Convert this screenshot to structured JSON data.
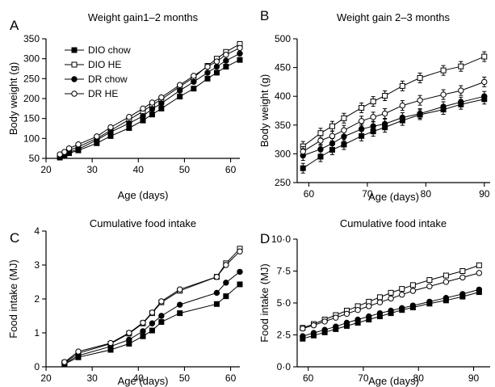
{
  "chart_data": [
    {
      "panel": "A",
      "type": "line",
      "title": "Weight gain1–2 months",
      "xlabel": "Age (days)",
      "ylabel": "Body weight (g)",
      "xlim": [
        20,
        62
      ],
      "ylim": [
        50,
        350
      ],
      "xticks": [
        "20",
        "30",
        "40",
        "50",
        "60"
      ],
      "yticks": [
        "50",
        "100",
        "150",
        "200",
        "250",
        "300",
        "350"
      ],
      "legend": "top-left",
      "series": [
        {
          "name": "DIO chow",
          "marker": "square",
          "fill": "filled",
          "x": [
            23,
            24,
            25,
            27,
            31,
            34,
            38,
            41,
            43,
            45,
            49,
            52,
            55,
            57,
            59,
            62
          ],
          "y": [
            52,
            57,
            63,
            70,
            88,
            106,
            126,
            145,
            160,
            175,
            205,
            225,
            250,
            265,
            280,
            297
          ]
        },
        {
          "name": "DIO HE",
          "marker": "square",
          "fill": "open",
          "x": [
            23,
            24,
            25,
            27,
            31,
            34,
            38,
            41,
            43,
            45,
            49,
            52,
            55,
            57,
            59,
            62
          ],
          "y": [
            57,
            62,
            70,
            79,
            100,
            120,
            147,
            168,
            184,
            198,
            230,
            253,
            282,
            300,
            317,
            337
          ]
        },
        {
          "name": "DR chow",
          "marker": "circle",
          "fill": "filled",
          "x": [
            23,
            24,
            25,
            27,
            31,
            34,
            38,
            41,
            43,
            45,
            49,
            52,
            55,
            57,
            59,
            62
          ],
          "y": [
            53,
            59,
            66,
            73,
            96,
            116,
            138,
            156,
            174,
            188,
            220,
            242,
            265,
            280,
            295,
            313
          ]
        },
        {
          "name": "DR HE",
          "marker": "circle",
          "fill": "open",
          "x": [
            23,
            24,
            25,
            27,
            31,
            34,
            38,
            41,
            43,
            45,
            49,
            52,
            55,
            57,
            59,
            62
          ],
          "y": [
            60,
            66,
            75,
            85,
            105,
            128,
            154,
            175,
            190,
            203,
            234,
            257,
            280,
            293,
            310,
            327
          ]
        }
      ]
    },
    {
      "panel": "B",
      "type": "line",
      "title": "Weight gain 2–3 months",
      "xlabel": "Age (days)",
      "ylabel": "Body weight (g)",
      "xlim": [
        58,
        91
      ],
      "ylim": [
        250,
        500
      ],
      "xticks": [
        "60",
        "70",
        "80",
        "90"
      ],
      "yticks": [
        "250",
        "300",
        "350",
        "400",
        "450",
        "500"
      ],
      "series": [
        {
          "name": "DIO chow",
          "marker": "square",
          "fill": "filled",
          "x": [
            59,
            62,
            64,
            66,
            69,
            71,
            73,
            76,
            79,
            83,
            86,
            90
          ],
          "y": [
            275,
            295,
            307,
            316,
            331,
            339,
            346,
            358,
            368,
            377,
            386,
            395
          ]
        },
        {
          "name": "DIO HE",
          "marker": "square",
          "fill": "open",
          "x": [
            59,
            62,
            64,
            66,
            69,
            71,
            73,
            76,
            79,
            83,
            86,
            90
          ],
          "y": [
            313,
            336,
            348,
            362,
            380,
            391,
            401,
            418,
            432,
            445,
            452,
            469
          ]
        },
        {
          "name": "DR chow",
          "marker": "circle",
          "fill": "filled",
          "x": [
            59,
            62,
            64,
            66,
            69,
            71,
            73,
            76,
            79,
            83,
            86,
            90
          ],
          "y": [
            297,
            308,
            318,
            330,
            343,
            348,
            352,
            363,
            370,
            382,
            390,
            400
          ]
        },
        {
          "name": "DR HE",
          "marker": "circle",
          "fill": "open",
          "x": [
            59,
            62,
            64,
            66,
            69,
            71,
            73,
            76,
            79,
            83,
            86,
            90
          ],
          "y": [
            304,
            323,
            331,
            341,
            357,
            364,
            370,
            384,
            393,
            403,
            410,
            425
          ]
        }
      ]
    },
    {
      "panel": "C",
      "type": "line",
      "title": "Cumulative food intake",
      "xlabel": "Age (days)",
      "ylabel": "Food intake (MJ)",
      "xlim": [
        20,
        62
      ],
      "ylim": [
        0,
        4
      ],
      "xticks": [
        "20",
        "30",
        "40",
        "50",
        "60"
      ],
      "yticks": [
        "0",
        "1",
        "2",
        "3",
        "4"
      ],
      "series": [
        {
          "name": "DIO chow",
          "marker": "square",
          "fill": "filled",
          "x": [
            24,
            27,
            34,
            38,
            41,
            43,
            45,
            49,
            57,
            59,
            62
          ],
          "y": [
            0.08,
            0.28,
            0.5,
            0.68,
            0.9,
            1.07,
            1.32,
            1.58,
            1.85,
            2.08,
            2.43
          ]
        },
        {
          "name": "DIO HE",
          "marker": "square",
          "fill": "open",
          "x": [
            24,
            27,
            34,
            38,
            41,
            43,
            45,
            49,
            57,
            59,
            62
          ],
          "y": [
            0.12,
            0.4,
            0.68,
            0.98,
            1.28,
            1.58,
            1.9,
            2.24,
            2.65,
            3.05,
            3.48
          ]
        },
        {
          "name": "DR chow",
          "marker": "circle",
          "fill": "filled",
          "x": [
            24,
            27,
            34,
            38,
            41,
            43,
            45,
            49,
            57,
            59,
            62
          ],
          "y": [
            0.1,
            0.33,
            0.6,
            0.8,
            1.05,
            1.28,
            1.5,
            1.83,
            2.18,
            2.48,
            2.8
          ]
        },
        {
          "name": "DR HE",
          "marker": "circle",
          "fill": "open",
          "x": [
            24,
            27,
            34,
            38,
            41,
            43,
            45,
            49,
            57,
            59,
            62
          ],
          "y": [
            0.14,
            0.45,
            0.7,
            1.0,
            1.3,
            1.6,
            1.93,
            2.28,
            2.65,
            3.0,
            3.4
          ]
        }
      ]
    },
    {
      "panel": "D",
      "type": "line",
      "title": "Cumulative food intake",
      "xlabel": "Age (days)",
      "ylabel": "Food intake (MJ)",
      "xlim": [
        58,
        93
      ],
      "ylim": [
        0,
        10
      ],
      "xticks": [
        "60",
        "70",
        "80",
        "90"
      ],
      "yticks": [
        "0·0",
        "2·5",
        "5·0",
        "7·5",
        "10·0"
      ],
      "series": [
        {
          "name": "DIO chow",
          "marker": "square",
          "fill": "filled",
          "x": [
            59,
            61,
            63,
            65,
            67,
            69,
            71,
            73,
            75,
            77,
            79,
            82,
            85,
            88,
            91
          ],
          "y": [
            2.2,
            2.45,
            2.7,
            2.95,
            3.2,
            3.45,
            3.7,
            3.95,
            4.2,
            4.45,
            4.65,
            4.95,
            5.2,
            5.5,
            5.85
          ]
        },
        {
          "name": "DIO HE",
          "marker": "square",
          "fill": "open",
          "x": [
            59,
            61,
            63,
            65,
            67,
            69,
            71,
            73,
            75,
            77,
            79,
            82,
            85,
            88,
            91
          ],
          "y": [
            3.05,
            3.35,
            3.7,
            4.05,
            4.4,
            4.75,
            5.1,
            5.45,
            5.8,
            6.1,
            6.4,
            6.8,
            7.15,
            7.5,
            7.95
          ]
        },
        {
          "name": "DR chow",
          "marker": "circle",
          "fill": "filled",
          "x": [
            59,
            61,
            63,
            65,
            67,
            69,
            71,
            73,
            75,
            77,
            79,
            82,
            85,
            88,
            91
          ],
          "y": [
            2.4,
            2.65,
            2.9,
            3.15,
            3.45,
            3.7,
            3.95,
            4.2,
            4.4,
            4.6,
            4.8,
            5.1,
            5.4,
            5.7,
            6.05
          ]
        },
        {
          "name": "DR HE",
          "marker": "circle",
          "fill": "open",
          "x": [
            59,
            61,
            63,
            65,
            67,
            69,
            71,
            73,
            75,
            77,
            79,
            82,
            85,
            88,
            91
          ],
          "y": [
            3.0,
            3.25,
            3.55,
            3.85,
            4.15,
            4.45,
            4.75,
            5.05,
            5.35,
            5.65,
            5.95,
            6.3,
            6.65,
            7.0,
            7.35
          ]
        }
      ]
    }
  ]
}
